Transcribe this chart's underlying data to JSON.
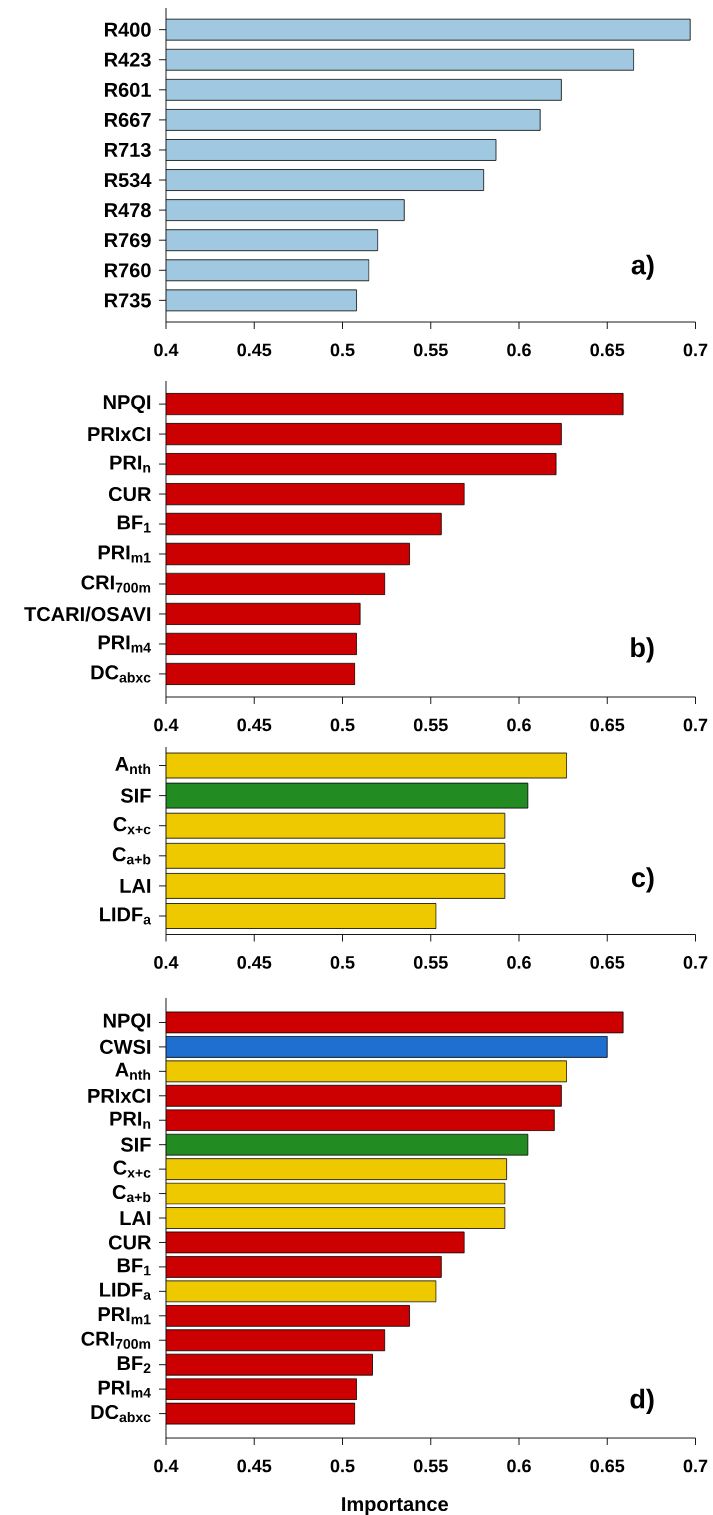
{
  "chart_data": [
    {
      "type": "bar",
      "orientation": "horizontal",
      "categories": [
        "R400",
        "R423",
        "R601",
        "R667",
        "R713",
        "R534",
        "R478",
        "R769",
        "R760",
        "R735"
      ],
      "values": [
        0.697,
        0.665,
        0.624,
        0.612,
        0.587,
        0.58,
        0.535,
        0.52,
        0.515,
        0.508
      ],
      "color": "#a0c8e0",
      "xlim": [
        0.4,
        0.7
      ],
      "xticks": [
        0.4,
        0.45,
        0.5,
        0.55,
        0.6,
        0.65,
        0.7
      ],
      "annotations": [
        "a)"
      ]
    },
    {
      "type": "bar",
      "orientation": "horizontal",
      "categories": [
        "NPQI",
        "PRIxCI",
        "PRI$_{n}$",
        "CUR",
        "BF$_{1}$",
        "PRI$_{m1}$",
        "CRI$_{700m}$",
        "TCARI/OSAVI",
        "PRI$_{m4}$",
        "DC$_{abxc}$"
      ],
      "values": [
        0.659,
        0.624,
        0.621,
        0.569,
        0.556,
        0.538,
        0.524,
        0.51,
        0.508,
        0.507
      ],
      "color": "#cc0000",
      "xlim": [
        0.4,
        0.7
      ],
      "xticks": [
        0.4,
        0.45,
        0.5,
        0.55,
        0.6,
        0.65,
        0.7
      ],
      "annotations": [
        "b)"
      ]
    },
    {
      "type": "bar",
      "orientation": "horizontal",
      "categories": [
        "A$_{nth}$",
        "SIF",
        "C$_{x+c}$",
        "C$_{a+b}$",
        "LAI",
        "LIDF$_{a}$"
      ],
      "values": [
        0.627,
        0.605,
        0.592,
        0.592,
        0.592,
        0.553
      ],
      "colors": [
        "#eec900",
        "#228b22",
        "#eec900",
        "#eec900",
        "#eec900",
        "#eec900"
      ],
      "xlim": [
        0.4,
        0.7
      ],
      "xticks": [
        0.4,
        0.45,
        0.5,
        0.55,
        0.6,
        0.65,
        0.7
      ],
      "annotations": [
        "c)"
      ]
    },
    {
      "type": "bar",
      "orientation": "horizontal",
      "categories": [
        "NPQI",
        "CWSI",
        "A$_{nth}$",
        "PRIxCI",
        "PRI$_{n}$",
        "SIF",
        "C$_{x+c}$",
        "C$_{a+b}$",
        "LAI",
        "CUR",
        "BF$_{1}$",
        "LIDF$_{a}$",
        "PRI$_{m1}$",
        "CRI$_{700m}$",
        "BF$_{2}$",
        "PRI$_{m4}$",
        "DC$_{abxc}$"
      ],
      "values": [
        0.659,
        0.65,
        0.627,
        0.624,
        0.62,
        0.605,
        0.593,
        0.592,
        0.592,
        0.569,
        0.556,
        0.553,
        0.538,
        0.524,
        0.517,
        0.508,
        0.507
      ],
      "colors": [
        "#cc0000",
        "#1f6fd0",
        "#eec900",
        "#cc0000",
        "#cc0000",
        "#228b22",
        "#eec900",
        "#eec900",
        "#eec900",
        "#cc0000",
        "#cc0000",
        "#eec900",
        "#cc0000",
        "#cc0000",
        "#cc0000",
        "#cc0000",
        "#cc0000"
      ],
      "xlim": [
        0.4,
        0.7
      ],
      "xticks": [
        0.4,
        0.45,
        0.5,
        0.55,
        0.6,
        0.65,
        0.7
      ],
      "xlabel": "Importance",
      "annotations": [
        "d)"
      ]
    }
  ]
}
